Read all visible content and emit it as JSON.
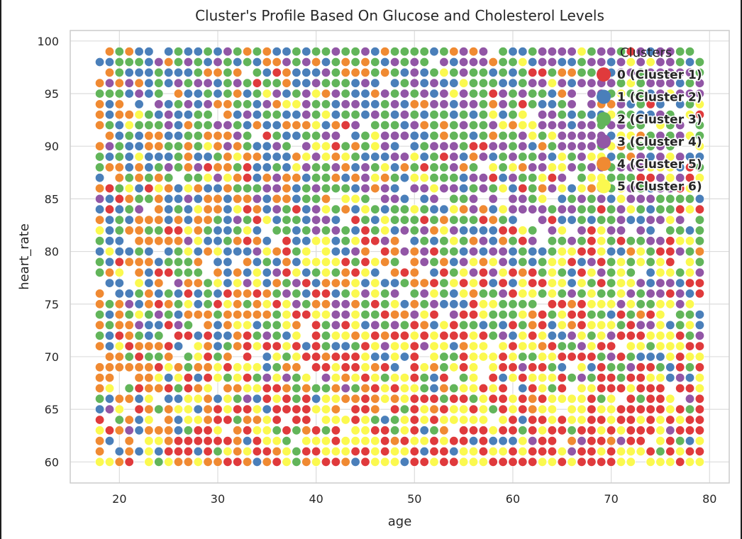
{
  "chart_data": {
    "type": "scatter",
    "title": "Cluster's Profile Based On Glucose and Cholesterol Levels",
    "xlabel": "age",
    "ylabel": "heart_rate",
    "xlim": [
      15,
      82
    ],
    "ylim": [
      58,
      101
    ],
    "xticks": [
      "20",
      "30",
      "40",
      "50",
      "60",
      "70",
      "80"
    ],
    "yticks": [
      "60",
      "65",
      "70",
      "75",
      "80",
      "85",
      "90",
      "95",
      "100"
    ],
    "grid": true,
    "legend": {
      "title": "Clusters",
      "placement": "top-right",
      "entries": [
        "0 (Cluster 1)",
        "1 (Cluster 2)",
        "2 (Cluster 3)",
        "3 (Cluster 4)",
        "4 (Cluster 5)",
        "5 (Cluster 6)"
      ]
    },
    "series_colors": [
      "#e03a3c",
      "#4a7fba",
      "#62b55a",
      "#9256a6",
      "#f08a32",
      "#fbf94f"
    ],
    "x_domain": [
      18,
      79
    ],
    "y_domain": [
      60,
      99
    ],
    "data_note_grid": "one point per integer age 18-79 and integer heart_rate 60-99, cluster assignment varies by region"
  }
}
